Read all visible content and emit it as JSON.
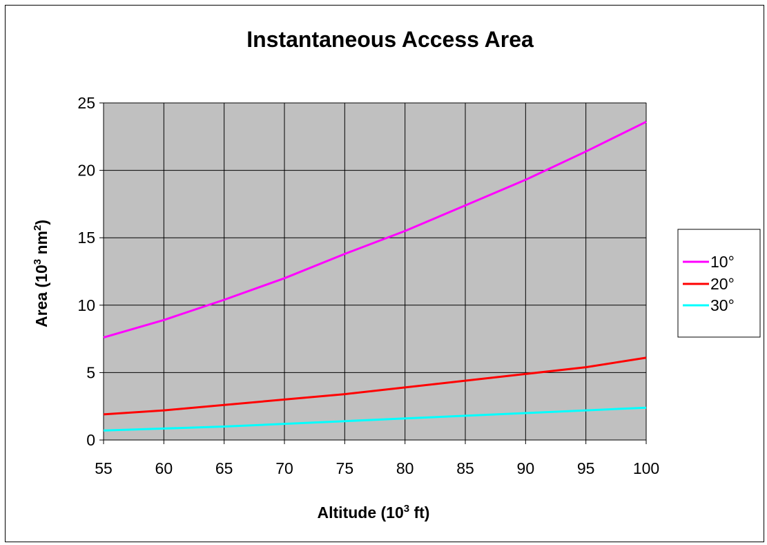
{
  "chart_data": {
    "type": "line",
    "title": "Instantaneous Access Area",
    "xlabel": {
      "prefix": "Altitude (10",
      "sup": "3",
      "suffix": " ft)"
    },
    "ylabel": {
      "prefix": "Area (10",
      "sup": "3",
      "middle": " nm",
      "sup2": "2",
      "suffix": ")"
    },
    "x": [
      55,
      60,
      65,
      70,
      75,
      80,
      85,
      90,
      95,
      100
    ],
    "xlim": [
      55,
      100
    ],
    "ylim": [
      0,
      25
    ],
    "yticks": [
      0,
      5,
      10,
      15,
      20,
      25
    ],
    "grid": true,
    "legend_position": "right",
    "plot_background": "#c0c0c0",
    "series": [
      {
        "name": "10°",
        "color": "#ff00ff",
        "values": [
          7.6,
          8.9,
          10.4,
          12.0,
          13.8,
          15.5,
          17.4,
          19.3,
          21.4,
          23.6
        ]
      },
      {
        "name": "20°",
        "color": "#ff0000",
        "values": [
          1.9,
          2.2,
          2.6,
          3.0,
          3.4,
          3.9,
          4.4,
          4.9,
          5.4,
          6.1
        ]
      },
      {
        "name": "30°",
        "color": "#00ffff",
        "values": [
          0.7,
          0.85,
          1.0,
          1.2,
          1.4,
          1.6,
          1.8,
          2.0,
          2.2,
          2.4
        ]
      }
    ]
  }
}
